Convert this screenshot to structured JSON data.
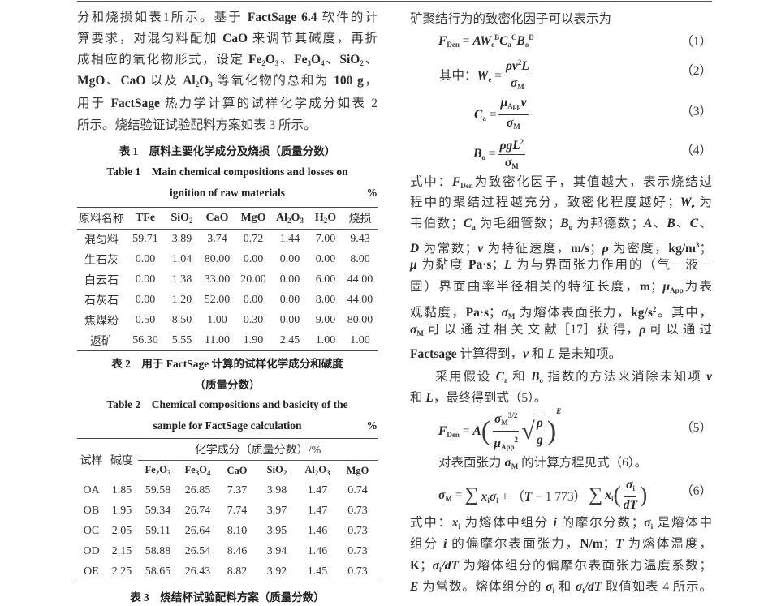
{
  "left": {
    "para": [
      [
        "分和烧损如表1所示。基于 ",
        [
          "FactSage 6.4",
          "b"
        ],
        " 软件的计"
      ],
      [
        "算要求，对混匀料配加 ",
        [
          "CaO",
          "b"
        ],
        " 来调节其碱度，再折"
      ],
      [
        "成相应的氧化物形式，设定 ",
        [
          "Fe",
          "b"
        ],
        [
          "2",
          "sub"
        ],
        [
          "O",
          "b"
        ],
        [
          "3",
          "sub"
        ],
        "、",
        [
          "Fe",
          "b"
        ],
        [
          "3",
          "sub"
        ],
        [
          "O",
          "b"
        ],
        [
          "4",
          "sub"
        ],
        "、",
        [
          "SiO",
          "b"
        ],
        [
          "2",
          "sub"
        ],
        "、"
      ],
      [
        [
          "MgO",
          "b"
        ],
        "、",
        [
          "CaO",
          "b"
        ],
        " 以及 ",
        [
          "Al",
          "b"
        ],
        [
          "2",
          "sub"
        ],
        [
          "O",
          "b"
        ],
        [
          "3",
          "sub"
        ],
        " 等氧化物的总和为 ",
        [
          "100 g",
          "b"
        ],
        "，"
      ],
      [
        "用于 ",
        [
          "FactSage",
          "b"
        ],
        " 热力学计算的试样化学成分如表 2"
      ],
      [
        "所示。烧结验证试验配料方案如表 3 所示。"
      ]
    ],
    "table1": {
      "caption_cn": "表 1　原料主要化学成分及烧损（质量分数）",
      "caption_en_1": "Table 1　Main chemical compositions and losses on",
      "caption_en_2": "ignition of raw materials",
      "unit": "%",
      "headers": [
        [
          "原料名称"
        ],
        [
          [
            "TFe",
            "b"
          ]
        ],
        [
          [
            "SiO",
            "b"
          ],
          [
            "2",
            "sub"
          ]
        ],
        [
          [
            "CaO",
            "b"
          ]
        ],
        [
          [
            "MgO",
            "b"
          ]
        ],
        [
          [
            "Al",
            "b"
          ],
          [
            "2",
            "sub"
          ],
          [
            "O",
            "b"
          ],
          [
            "3",
            "sub"
          ]
        ],
        [
          [
            "H",
            "b"
          ],
          [
            "2",
            "sub"
          ],
          [
            "O",
            "b"
          ]
        ],
        [
          "烧损"
        ]
      ],
      "rows": [
        [
          "混匀料",
          "59.71",
          "3.89",
          "3.74",
          "0.72",
          "1.44",
          "7.00",
          "9.43"
        ],
        [
          "生石灰",
          "0.00",
          "1.04",
          "80.00",
          "0.00",
          "0.00",
          "0.00",
          "8.00"
        ],
        [
          "白云石",
          "0.00",
          "1.38",
          "33.00",
          "20.00",
          "0.00",
          "6.00",
          "44.00"
        ],
        [
          "石灰石",
          "0.00",
          "1.20",
          "52.00",
          "0.00",
          "0.00",
          "8.00",
          "44.00"
        ],
        [
          "焦煤粉",
          "0.50",
          "8.50",
          "1.00",
          "0.30",
          "0.00",
          "9.00",
          "80.00"
        ],
        [
          "返矿",
          "56.30",
          "5.55",
          "11.00",
          "1.90",
          "2.45",
          "1.00",
          "1.00"
        ]
      ]
    },
    "table2": {
      "caption_cn_1": "表 2　用于 FactSage 计算的试样化学成分和碱度",
      "caption_cn_2": "（质量分数）",
      "caption_en_1": "Table 2　Chemical compositions and basicity of the",
      "caption_en_2": "sample for FactSage calculation",
      "unit": "%",
      "col_sample": "试样",
      "col_basicity": "碱度",
      "group_header": "化学成分（质量分数）/%",
      "headers": [
        [
          [
            "Fe",
            "b"
          ],
          [
            "2",
            "sub"
          ],
          [
            "O",
            "b"
          ],
          [
            "3",
            "sub"
          ]
        ],
        [
          [
            "Fe",
            "b"
          ],
          [
            "3",
            "sub"
          ],
          [
            "O",
            "b"
          ],
          [
            "4",
            "sub"
          ]
        ],
        [
          [
            "CaO",
            "b"
          ]
        ],
        [
          [
            "SiO",
            "b"
          ],
          [
            "2",
            "sub"
          ]
        ],
        [
          [
            "Al",
            "b"
          ],
          [
            "2",
            "sub"
          ],
          [
            "O",
            "b"
          ],
          [
            "3",
            "sub"
          ]
        ],
        [
          [
            "MgO",
            "b"
          ]
        ]
      ],
      "rows": [
        [
          "OA",
          "1.85",
          "59.58",
          "26.85",
          "7.37",
          "3.98",
          "1.47",
          "0.74"
        ],
        [
          "OB",
          "1.95",
          "59.34",
          "26.74",
          "7.74",
          "3.97",
          "1.47",
          "0.73"
        ],
        [
          "OC",
          "2.05",
          "59.11",
          "26.64",
          "8.10",
          "3.95",
          "1.46",
          "0.73"
        ],
        [
          "OD",
          "2.15",
          "58.88",
          "26.54",
          "8.46",
          "3.94",
          "1.46",
          "0.73"
        ],
        [
          "OE",
          "2.25",
          "58.65",
          "26.43",
          "8.82",
          "3.92",
          "1.45",
          "0.73"
        ]
      ]
    },
    "table3": {
      "caption_cn": "表 3　烧结杯试验配料方案（质量分数）"
    }
  },
  "right": {
    "intro": [
      [
        "矿聚结行为的致密化因子可以表示为"
      ]
    ],
    "eq1": {
      "lhs": [
        [
          "F",
          "bi"
        ],
        [
          "Den",
          "sub"
        ],
        " = ",
        [
          "A",
          "bi"
        ],
        [
          "W",
          "bi"
        ],
        [
          "e",
          "sub"
        ],
        [
          "B",
          "sup"
        ],
        [
          "C",
          "bi"
        ],
        [
          "a",
          "sub"
        ],
        [
          "C",
          "sup"
        ],
        [
          "B",
          "bi"
        ],
        [
          "o",
          "sub"
        ],
        [
          "D",
          "sup"
        ]
      ],
      "number": "（1）"
    },
    "eq2": {
      "lhs": [
        "其中：",
        [
          "W",
          "bi"
        ],
        [
          "e",
          "sub"
        ],
        " ="
      ],
      "num": [
        [
          "ρv",
          "bi"
        ],
        [
          "2",
          "sup"
        ],
        [
          "L",
          "bi"
        ]
      ],
      "den": [
        [
          "σ",
          "bi"
        ],
        [
          "M",
          "sub"
        ]
      ],
      "number": "（2）"
    },
    "eq3": {
      "lhs": [
        [
          "C",
          "bi"
        ],
        [
          "a",
          "sub"
        ],
        " ="
      ],
      "num": [
        [
          "μ",
          "bi"
        ],
        [
          "App",
          "sub"
        ],
        [
          "v",
          "bi"
        ]
      ],
      "den": [
        [
          "σ",
          "bi"
        ],
        [
          "M",
          "sub"
        ]
      ],
      "number": "（3）"
    },
    "eq4": {
      "lhs": [
        [
          "B",
          "bi"
        ],
        [
          "o",
          "sub"
        ],
        " ="
      ],
      "num": [
        [
          "ρgL",
          "bi"
        ],
        [
          "2",
          "sup"
        ]
      ],
      "den": [
        [
          "σ",
          "bi"
        ],
        [
          "M",
          "sub"
        ]
      ],
      "number": "（4）"
    },
    "para1": [
      [
        "式中：",
        [
          "F",
          "bi"
        ],
        [
          "Den",
          "sub"
        ],
        "为致密化因子，其值越大，表示烧结过"
      ],
      [
        "程中的聚结过程越充分，致密化程度越好；",
        [
          "W",
          "bi"
        ],
        [
          "e",
          "sub"
        ],
        " 为"
      ],
      [
        "韦伯数；",
        [
          "C",
          "bi"
        ],
        [
          "a",
          "sub"
        ],
        " 为毛细管数；",
        [
          "B",
          "bi"
        ],
        [
          "o",
          "sub"
        ],
        " 为邦德数；",
        [
          "A",
          "bi"
        ],
        "、",
        [
          "B",
          "bi"
        ],
        "、",
        [
          "C",
          "bi"
        ],
        "、"
      ],
      [
        [
          "D",
          "bi"
        ],
        " 为常数；",
        [
          "v",
          "bi"
        ],
        " 为特征速度，",
        [
          "m/s",
          "b"
        ],
        "；",
        [
          "ρ",
          "bi"
        ],
        " 为密度，",
        [
          "kg/m",
          "b"
        ],
        [
          "3",
          "sup"
        ],
        "；"
      ],
      [
        [
          "μ",
          "bi"
        ],
        " 为黏度 ",
        [
          "Pa·s",
          "b"
        ],
        "；",
        [
          "L",
          "bi"
        ],
        " 为与界面张力作用的（气－液－"
      ],
      [
        "固）界面曲率半径相关的特征长度，",
        [
          "m",
          "b"
        ],
        "；",
        [
          "μ",
          "bi"
        ],
        [
          "App",
          "sub"
        ],
        "为表"
      ],
      [
        "观黏度，",
        [
          "Pa·s",
          "b"
        ],
        "；",
        [
          "σ",
          "bi"
        ],
        [
          "M",
          "sub"
        ],
        " 为熔体表面张力，",
        [
          "kg/s",
          "b"
        ],
        [
          "2",
          "sup"
        ],
        "。其中，"
      ],
      [
        [
          "σ",
          "bi"
        ],
        [
          "M",
          "sub"
        ],
        " 可 以 通 过 相 关 文 献［17］获 得，",
        [
          "ρ",
          "bi"
        ],
        " 可 以 通 过"
      ],
      [
        [
          "Factsage",
          "b"
        ],
        " 计算得到，",
        [
          "v",
          "bi"
        ],
        " 和 ",
        [
          "L",
          "bi"
        ],
        " 是未知项。"
      ]
    ],
    "para2": [
      [
        "采用假设 ",
        [
          "C",
          "bi"
        ],
        [
          "a",
          "sub"
        ],
        " 和 ",
        [
          "B",
          "bi"
        ],
        [
          "o",
          "sub"
        ],
        " 指数的方法来消除未知项 ",
        [
          "v",
          "bi"
        ]
      ],
      [
        "和 ",
        [
          "L",
          "bi"
        ],
        "，最终得到式（5）。"
      ]
    ],
    "eq5": {
      "lhs": [
        [
          "F",
          "bi"
        ],
        [
          "Den",
          "sub"
        ],
        " = ",
        [
          "A",
          "bi"
        ]
      ],
      "num": [
        [
          "σ",
          "bi"
        ],
        [
          "M",
          "sub"
        ],
        [
          "3/2",
          "sup"
        ]
      ],
      "den": [
        [
          "μ",
          "bi"
        ],
        [
          "App",
          "sub"
        ],
        [
          "2",
          "sup"
        ]
      ],
      "sqrt_num": [
        [
          "ρ",
          "bi"
        ]
      ],
      "sqrt_den": [
        [
          "g",
          "bi"
        ]
      ],
      "exponent": "E",
      "number": "（5）"
    },
    "para3": [
      [
        "对表面张力 ",
        [
          "σ",
          "bi"
        ],
        [
          "M",
          "sub"
        ],
        " 的计算方程见式（6）。"
      ]
    ],
    "eq6": {
      "lhs": [
        [
          "σ",
          "bi"
        ],
        [
          "M",
          "sub"
        ],
        " ="
      ],
      "sum": "∑",
      "mid": [
        [
          "x",
          "bi"
        ],
        [
          "i",
          "sub"
        ],
        [
          "σ",
          "bi"
        ],
        [
          "i",
          "sub"
        ],
        " + （",
        [
          "T",
          "bi"
        ],
        " − 1 773）"
      ],
      "term": [
        [
          "x",
          "bi"
        ],
        [
          "i",
          "sub"
        ]
      ],
      "num": [
        [
          "σ",
          "bi"
        ],
        [
          "i",
          "sub"
        ]
      ],
      "den": [
        [
          "dT",
          "bi"
        ]
      ],
      "number": "（6）"
    },
    "para4": [
      [
        "式中：",
        [
          "x",
          "bi"
        ],
        [
          "i",
          "sub"
        ],
        " 为熔体中组分 ",
        [
          "i",
          "bi"
        ],
        " 的摩尔分数；",
        [
          "σ",
          "bi"
        ],
        [
          "i",
          "sub"
        ],
        " 是熔体中"
      ],
      [
        "组分 ",
        [
          "i",
          "bi"
        ],
        " 的偏摩尔表面张力，",
        [
          "N/m",
          "b"
        ],
        "；",
        [
          "T",
          "bi"
        ],
        " 为熔体温度，"
      ],
      [
        [
          "K",
          "b"
        ],
        "；",
        [
          "σ",
          "bi"
        ],
        [
          "i",
          "sub"
        ],
        [
          "/dT",
          "bi"
        ],
        " 为熔体组分的偏摩尔表面张力温度系数；"
      ],
      [
        [
          "E",
          "bi"
        ],
        " 为常数。熔体组分的 ",
        [
          "σ",
          "bi"
        ],
        [
          "i",
          "sub"
        ],
        " 和 ",
        [
          "σ",
          "bi"
        ],
        [
          "i",
          "sub"
        ],
        [
          "/dT",
          "bi"
        ],
        " 取值如表 4 所示。"
      ]
    ]
  }
}
